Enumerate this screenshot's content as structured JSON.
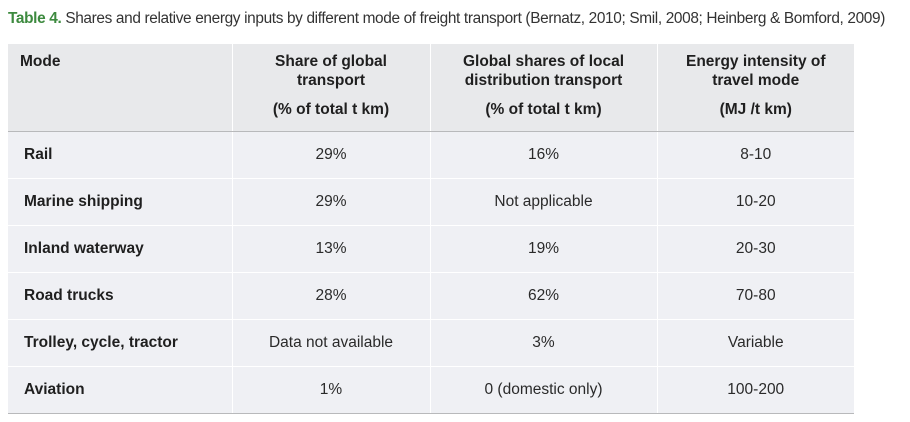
{
  "caption": {
    "label": "Table 4.",
    "text": "Shares and relative energy inputs by different mode of freight transport (Bernatz, 2010; Smil, 2008; Heinberg & Bomford, 2009)"
  },
  "colors": {
    "label": "#3d8a3f",
    "header_bg": "#e8e9eb",
    "row_bg": "#eff0f4"
  },
  "table": {
    "headers": [
      {
        "title": "Mode",
        "unit": ""
      },
      {
        "title": "Share of global transport",
        "unit": "(% of total t km)"
      },
      {
        "title": "Global shares of local distribution transport",
        "unit": "(% of total t km)"
      },
      {
        "title": "Energy intensity of travel mode",
        "unit": "(MJ /t km)"
      }
    ],
    "rows": [
      [
        "Rail",
        "29%",
        "16%",
        "8-10"
      ],
      [
        "Marine shipping",
        "29%",
        "Not applicable",
        "10-20"
      ],
      [
        "Inland waterway",
        "13%",
        "19%",
        "20-30"
      ],
      [
        "Road trucks",
        "28%",
        "62%",
        "70-80"
      ],
      [
        "Trolley, cycle, tractor",
        "Data not available",
        "3%",
        "Variable"
      ],
      [
        "Aviation",
        "1%",
        "0 (domestic only)",
        "100-200"
      ]
    ]
  }
}
